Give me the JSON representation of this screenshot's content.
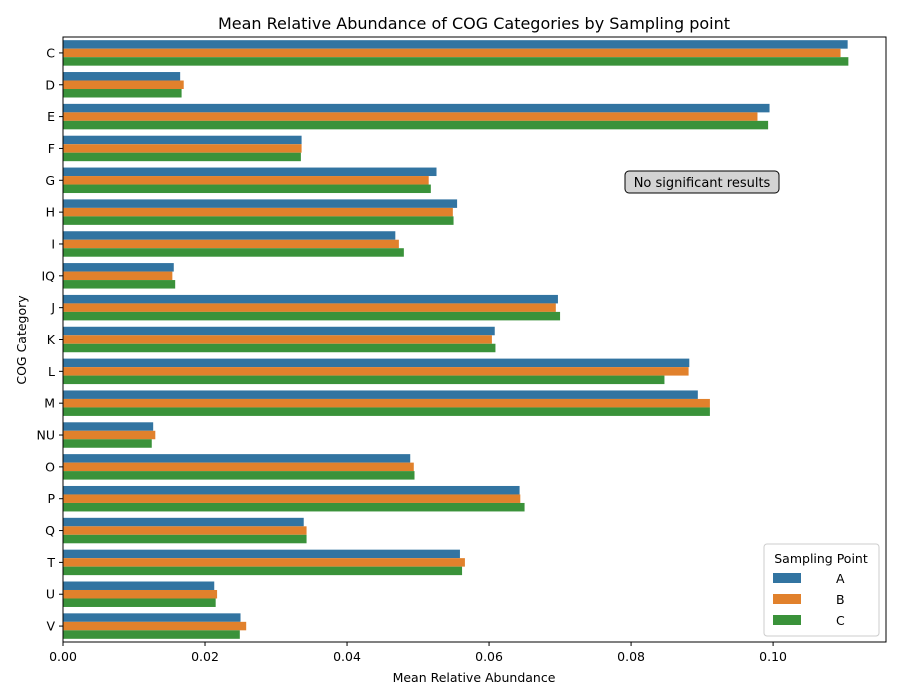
{
  "chart_data": {
    "type": "bar",
    "orientation": "horizontal",
    "title": "Mean Relative Abundance of COG Categories by Sampling point",
    "xlabel": "Mean Relative Abundance",
    "ylabel": "COG Category",
    "xlim": [
      0,
      0.1159
    ],
    "xticks": [
      "0.00",
      "0.02",
      "0.04",
      "0.06",
      "0.08",
      "0.10"
    ],
    "categories": [
      "C",
      "D",
      "E",
      "F",
      "G",
      "H",
      "I",
      "IQ",
      "J",
      "K",
      "L",
      "M",
      "NU",
      "O",
      "P",
      "Q",
      "T",
      "U",
      "V"
    ],
    "series": [
      {
        "name": "A",
        "color": "#3274a1",
        "values": [
          0.1105,
          0.0165,
          0.0995,
          0.0336,
          0.0526,
          0.0555,
          0.0468,
          0.0156,
          0.0697,
          0.0608,
          0.0882,
          0.0894,
          0.0127,
          0.0489,
          0.0643,
          0.0339,
          0.0559,
          0.0213,
          0.025
        ]
      },
      {
        "name": "B",
        "color": "#e1812c",
        "values": [
          0.1095,
          0.017,
          0.0978,
          0.0336,
          0.0515,
          0.0549,
          0.0473,
          0.0154,
          0.0694,
          0.0604,
          0.0881,
          0.0911,
          0.013,
          0.0494,
          0.0644,
          0.0343,
          0.0566,
          0.0217,
          0.0258
        ]
      },
      {
        "name": "C",
        "color": "#3a923a",
        "values": [
          0.1106,
          0.0167,
          0.0993,
          0.0335,
          0.0518,
          0.055,
          0.048,
          0.0158,
          0.07,
          0.0609,
          0.0847,
          0.0911,
          0.0125,
          0.0495,
          0.065,
          0.0343,
          0.0562,
          0.0215,
          0.0249
        ]
      }
    ],
    "legend": {
      "title": "Sampling Point",
      "placement": "lower-right"
    },
    "annotation": "No significant results",
    "grid": false
  }
}
